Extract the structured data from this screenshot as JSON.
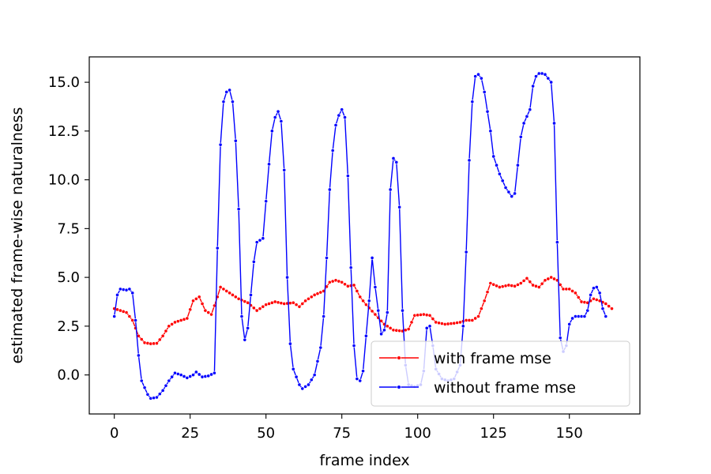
{
  "chart_data": {
    "type": "line",
    "title": "",
    "xlabel": "frame index",
    "ylabel": "estimated frame-wise naturalness",
    "xlim": [
      -8.25,
      173.25
    ],
    "ylim": [
      -2.0,
      16.3
    ],
    "xticks": [
      0,
      25,
      50,
      75,
      100,
      125,
      150
    ],
    "xtick_labels": [
      "0",
      "25",
      "50",
      "75",
      "100",
      "125",
      "150"
    ],
    "yticks": [
      0.0,
      2.5,
      5.0,
      7.5,
      10.0,
      12.5,
      15.0
    ],
    "ytick_labels": [
      "0.0",
      "2.5",
      "5.0",
      "7.5",
      "10.0",
      "12.5",
      "15.0"
    ],
    "grid": false,
    "legend_position": "lower-right",
    "series": [
      {
        "name": "with frame mse",
        "color": "#ff0000",
        "marker": "circle",
        "keypoints": [
          [
            0,
            3.4
          ],
          [
            2,
            3.3
          ],
          [
            4,
            3.2
          ],
          [
            6,
            2.8
          ],
          [
            8,
            2.0
          ],
          [
            10,
            1.65
          ],
          [
            12,
            1.6
          ],
          [
            14,
            1.62
          ],
          [
            16,
            2.0
          ],
          [
            18,
            2.5
          ],
          [
            20,
            2.7
          ],
          [
            22,
            2.8
          ],
          [
            24,
            2.9
          ],
          [
            26,
            3.8
          ],
          [
            28,
            4.0
          ],
          [
            30,
            3.3
          ],
          [
            32,
            3.1
          ],
          [
            34,
            4.0
          ],
          [
            35,
            4.5
          ],
          [
            38,
            4.2
          ],
          [
            41,
            3.9
          ],
          [
            44,
            3.7
          ],
          [
            47,
            3.3
          ],
          [
            50,
            3.6
          ],
          [
            53,
            3.75
          ],
          [
            56,
            3.65
          ],
          [
            59,
            3.7
          ],
          [
            61,
            3.5
          ],
          [
            63,
            3.8
          ],
          [
            66,
            4.1
          ],
          [
            69,
            4.3
          ],
          [
            71,
            4.75
          ],
          [
            73,
            4.85
          ],
          [
            75,
            4.75
          ],
          [
            77,
            4.55
          ],
          [
            79,
            4.6
          ],
          [
            81,
            4.0
          ],
          [
            83,
            3.6
          ],
          [
            86,
            3.1
          ],
          [
            89,
            2.6
          ],
          [
            92,
            2.3
          ],
          [
            95,
            2.25
          ],
          [
            97,
            2.35
          ],
          [
            99,
            3.05
          ],
          [
            102,
            3.1
          ],
          [
            104,
            3.05
          ],
          [
            106,
            2.7
          ],
          [
            109,
            2.6
          ],
          [
            112,
            2.65
          ],
          [
            114,
            2.7
          ],
          [
            116,
            2.8
          ],
          [
            118,
            2.8
          ],
          [
            120,
            3.0
          ],
          [
            122,
            3.8
          ],
          [
            124,
            4.7
          ],
          [
            127,
            4.5
          ],
          [
            130,
            4.6
          ],
          [
            132,
            4.55
          ],
          [
            134,
            4.7
          ],
          [
            136,
            4.95
          ],
          [
            138,
            4.6
          ],
          [
            140,
            4.5
          ],
          [
            142,
            4.85
          ],
          [
            144,
            5.0
          ],
          [
            146,
            4.85
          ],
          [
            148,
            4.4
          ],
          [
            150,
            4.4
          ],
          [
            152,
            4.2
          ],
          [
            154,
            3.75
          ],
          [
            156,
            3.7
          ],
          [
            158,
            3.9
          ],
          [
            160,
            3.8
          ],
          [
            162,
            3.65
          ],
          [
            164,
            3.4
          ]
        ]
      },
      {
        "name": "without frame mse",
        "color": "#0000ff",
        "marker": "circle",
        "keypoints": [
          [
            0,
            3.0
          ],
          [
            1,
            4.1
          ],
          [
            2,
            4.4
          ],
          [
            4,
            4.35
          ],
          [
            5,
            4.4
          ],
          [
            6,
            4.2
          ],
          [
            7,
            2.8
          ],
          [
            8,
            1.0
          ],
          [
            9,
            -0.3
          ],
          [
            11,
            -1.0
          ],
          [
            12,
            -1.2
          ],
          [
            14,
            -1.15
          ],
          [
            16,
            -0.8
          ],
          [
            18,
            -0.3
          ],
          [
            20,
            0.1
          ],
          [
            22,
            0.0
          ],
          [
            24,
            -0.15
          ],
          [
            26,
            0.0
          ],
          [
            27,
            0.15
          ],
          [
            29,
            -0.1
          ],
          [
            31,
            -0.05
          ],
          [
            33,
            0.1
          ],
          [
            34,
            6.5
          ],
          [
            35,
            11.8
          ],
          [
            36,
            14.0
          ],
          [
            37,
            14.5
          ],
          [
            38,
            14.6
          ],
          [
            39,
            14.0
          ],
          [
            40,
            12.0
          ],
          [
            41,
            8.5
          ],
          [
            42,
            3.0
          ],
          [
            43,
            1.8
          ],
          [
            44,
            2.4
          ],
          [
            46,
            5.8
          ],
          [
            47,
            6.8
          ],
          [
            49,
            7.0
          ],
          [
            51,
            10.8
          ],
          [
            52,
            12.5
          ],
          [
            53,
            13.2
          ],
          [
            54,
            13.5
          ],
          [
            55,
            13.0
          ],
          [
            56,
            10.5
          ],
          [
            57,
            5.0
          ],
          [
            58,
            1.6
          ],
          [
            59,
            0.3
          ],
          [
            61,
            -0.5
          ],
          [
            62,
            -0.7
          ],
          [
            64,
            -0.5
          ],
          [
            66,
            0.0
          ],
          [
            68,
            1.4
          ],
          [
            69,
            3.0
          ],
          [
            70,
            6.0
          ],
          [
            71,
            9.5
          ],
          [
            72,
            11.5
          ],
          [
            73,
            12.8
          ],
          [
            74,
            13.3
          ],
          [
            75,
            13.6
          ],
          [
            76,
            13.2
          ],
          [
            77,
            10.2
          ],
          [
            78,
            5.5
          ],
          [
            79,
            1.5
          ],
          [
            80,
            -0.2
          ],
          [
            81,
            -0.3
          ],
          [
            82,
            0.2
          ],
          [
            84,
            3.8
          ],
          [
            85,
            6.0
          ],
          [
            86,
            4.5
          ],
          [
            87,
            3.3
          ],
          [
            88,
            2.1
          ],
          [
            89,
            2.3
          ],
          [
            90,
            3.2
          ],
          [
            91,
            9.5
          ],
          [
            92,
            11.1
          ],
          [
            93,
            10.9
          ],
          [
            94,
            8.6
          ],
          [
            95,
            3.3
          ],
          [
            96,
            0.5
          ],
          [
            97,
            -0.5
          ],
          [
            99,
            -0.6
          ],
          [
            101,
            -0.5
          ],
          [
            102,
            0.2
          ],
          [
            103,
            2.4
          ],
          [
            104,
            2.5
          ],
          [
            105,
            1.5
          ],
          [
            106,
            0.3
          ],
          [
            108,
            -0.2
          ],
          [
            110,
            -0.3
          ],
          [
            112,
            -0.2
          ],
          [
            114,
            0.5
          ],
          [
            115,
            2.5
          ],
          [
            116,
            6.3
          ],
          [
            117,
            11.0
          ],
          [
            118,
            14.0
          ],
          [
            119,
            15.3
          ],
          [
            120,
            15.4
          ],
          [
            121,
            15.2
          ],
          [
            122,
            14.5
          ],
          [
            123,
            13.5
          ],
          [
            124,
            12.5
          ],
          [
            125,
            11.2
          ],
          [
            127,
            10.3
          ],
          [
            129,
            9.6
          ],
          [
            131,
            9.15
          ],
          [
            132,
            9.3
          ],
          [
            134,
            12.2
          ],
          [
            135,
            12.9
          ],
          [
            137,
            13.6
          ],
          [
            138,
            14.8
          ],
          [
            139,
            15.3
          ],
          [
            140,
            15.45
          ],
          [
            141,
            15.45
          ],
          [
            142,
            15.4
          ],
          [
            144,
            15.0
          ],
          [
            145,
            12.9
          ],
          [
            146,
            6.8
          ],
          [
            147,
            1.9
          ],
          [
            148,
            1.2
          ],
          [
            149,
            1.5
          ],
          [
            150,
            2.6
          ],
          [
            151,
            2.9
          ],
          [
            152,
            3.0
          ],
          [
            155,
            3.0
          ],
          [
            156,
            3.3
          ],
          [
            157,
            4.1
          ],
          [
            158,
            4.45
          ],
          [
            159,
            4.5
          ],
          [
            160,
            4.2
          ],
          [
            161,
            3.4
          ],
          [
            162,
            3.0
          ]
        ]
      }
    ]
  }
}
